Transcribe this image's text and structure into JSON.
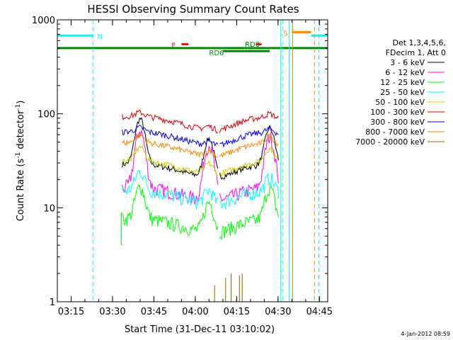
{
  "chart_data": {
    "type": "line",
    "title": "HESSI Observing Summary Count Rates",
    "xlabel": "Start Time (31-Dec-11 03:10:02)",
    "ylabel_main": "Count Rate (s",
    "ylabel_sup1": "-1",
    "ylabel_mid": " detector",
    "ylabel_sup2": "-1",
    "ylabel_end": ")",
    "y_scale": "log",
    "xlim": [
      "03:10",
      "04:48"
    ],
    "ylim": [
      1,
      1000
    ],
    "x_ticks": [
      "03:15",
      "03:30",
      "03:45",
      "04:00",
      "04:15",
      "04:30",
      "04:45"
    ],
    "y_ticks": [
      "1",
      "10",
      "100",
      "1000"
    ],
    "legend_header": [
      "Det 1,3,4,5,6,",
      "FDecim 1, Att 0"
    ],
    "legend_placement": "right",
    "series": [
      {
        "name": "3 - 6 keV",
        "color": "#000000",
        "level": 25,
        "flares": [
          [
            3.6,
            2.0
          ],
          [
            55,
            1.6
          ],
          [
            77,
            1.5
          ]
        ]
      },
      {
        "name": "6 - 12 keV",
        "color": "#ff00ff",
        "level": 14,
        "flares": [
          [
            3.6,
            3.0
          ],
          [
            55,
            3.0
          ],
          [
            77,
            2.6
          ]
        ]
      },
      {
        "name": "12 - 25 keV",
        "color": "#00ff00",
        "level": 6.5,
        "flares": [
          [
            3.6,
            1.2
          ],
          [
            55,
            1.1
          ],
          [
            77,
            1.2
          ]
        ]
      },
      {
        "name": "25 - 50 keV",
        "color": "#00ffff",
        "level": 13,
        "flares": [
          [
            3.6,
            0.6
          ],
          [
            55,
            0.4
          ],
          [
            77,
            0.4
          ]
        ]
      },
      {
        "name": "50 - 100 keV",
        "color": "#cccc00",
        "level": 27,
        "flares": [
          [
            3.6,
            0.4
          ],
          [
            55,
            0.3
          ],
          [
            77,
            0.4
          ]
        ]
      },
      {
        "name": "100 - 300 keV",
        "color": "#dd0000",
        "level": 80,
        "flares": [
          [
            3.6,
            0.1
          ],
          [
            55,
            0.1
          ],
          [
            77,
            0.1
          ]
        ]
      },
      {
        "name": "300 - 800 keV",
        "color": "#0000ff",
        "level": 55,
        "flares": [
          [
            3.6,
            0.1
          ],
          [
            55,
            0.1
          ],
          [
            77,
            0.1
          ]
        ]
      },
      {
        "name": "800 - 7000 keV",
        "color": "#ff8800",
        "level": 42,
        "flares": [
          [
            3.6,
            0.2
          ],
          [
            55,
            0.15
          ],
          [
            77,
            0.2
          ]
        ]
      },
      {
        "name": "7000 - 20000 keV",
        "color": "#886600",
        "level": 1,
        "flares": []
      }
    ],
    "data_interval_minutes": [
      23.5,
      80.3
    ],
    "gap_minutes": [
      58.5,
      58.6
    ],
    "flags": [
      {
        "label": "N",
        "color": "#00ffff",
        "start": 0,
        "end": 13,
        "level_y": 680
      },
      {
        "label": "F",
        "color": "#ff0000",
        "start": 45,
        "end": 47.5,
        "level_y": 550
      },
      {
        "label": "",
        "color": "#ff0000",
        "start": 72,
        "end": 74,
        "level_y": 550
      },
      {
        "label": "RD0",
        "color": "#008800",
        "start": 0,
        "end": 98,
        "level_y": 500
      },
      {
        "label": "RD6",
        "color": "#008800",
        "start": 60,
        "end": 77,
        "level_y": 465
      },
      {
        "label": "S",
        "color": "#ff8800",
        "start": 85,
        "end": 92,
        "level_y": 740
      },
      {
        "label": "",
        "color": "#00ffff",
        "start": 92,
        "end": 98,
        "level_y": 680
      }
    ],
    "vlines": [
      {
        "x": 0,
        "color": "#00ffff",
        "dash": false
      },
      {
        "x": 13,
        "color": "#00ffff",
        "dash": true
      },
      {
        "x": 81,
        "color": "#00ffff",
        "dash": false
      },
      {
        "x": 81.8,
        "color": "#00ffff",
        "dash": true
      },
      {
        "x": 84,
        "color": "#00ffff",
        "dash": false
      },
      {
        "x": 85.3,
        "color": "#ff8800",
        "dash": false
      },
      {
        "x": 93.2,
        "color": "#ff8800",
        "dash": true
      },
      {
        "x": 94.8,
        "color": "#00ffff",
        "dash": true
      }
    ],
    "footer_date": "4-Jan-2012 08:59"
  }
}
